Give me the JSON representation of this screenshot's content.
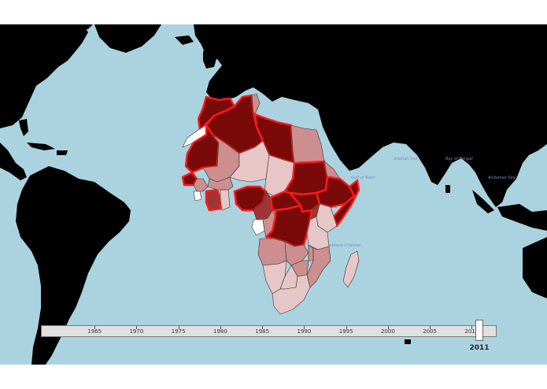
{
  "map": {
    "sea_labels": [
      "Bay of Bengal",
      "Gulf of Aden",
      "Mozambique Channel",
      "Arabian Sea",
      "Andaman Sea"
    ],
    "ocean_color": "#aad3df",
    "land_color": "#000000",
    "highlight_color": "#ff1a1a",
    "shading_scale": [
      "#ffffff",
      "#e6c6c6",
      "#cc8e8e",
      "#9f3535",
      "#7a0a0a"
    ],
    "countries": [
      {
        "name": "Morocco",
        "level": 4
      },
      {
        "name": "Western Sahara",
        "level": 0
      },
      {
        "name": "Algeria",
        "level": 4
      },
      {
        "name": "Tunisia",
        "level": 2
      },
      {
        "name": "Libya",
        "level": 4
      },
      {
        "name": "Egypt",
        "level": 2
      },
      {
        "name": "Mauritania",
        "level": 4
      },
      {
        "name": "Mali",
        "level": 2
      },
      {
        "name": "Niger",
        "level": 1
      },
      {
        "name": "Chad",
        "level": 1
      },
      {
        "name": "Sudan",
        "level": 4
      },
      {
        "name": "Eritrea",
        "level": 2
      },
      {
        "name": "Ethiopia",
        "level": 4
      },
      {
        "name": "Somalia",
        "level": 4
      },
      {
        "name": "Senegal",
        "level": 4
      },
      {
        "name": "Guinea",
        "level": 2
      },
      {
        "name": "Sierra Leone",
        "level": 0
      },
      {
        "name": "Cote d'Ivoire",
        "level": 3
      },
      {
        "name": "Ghana",
        "level": 1
      },
      {
        "name": "Burkina Faso",
        "level": 2
      },
      {
        "name": "Nigeria",
        "level": 4
      },
      {
        "name": "Cameroon",
        "level": 3
      },
      {
        "name": "Central African Republic",
        "level": 4
      },
      {
        "name": "South Sudan",
        "level": 4
      },
      {
        "name": "Kenya",
        "level": 1
      },
      {
        "name": "Uganda",
        "level": 3
      },
      {
        "name": "Gabon",
        "level": 0
      },
      {
        "name": "Congo",
        "level": 2
      },
      {
        "name": "DR Congo",
        "level": 4
      },
      {
        "name": "Tanzania",
        "level": 1
      },
      {
        "name": "Angola",
        "level": 2
      },
      {
        "name": "Zambia",
        "level": 2
      },
      {
        "name": "Malawi",
        "level": 2
      },
      {
        "name": "Mozambique",
        "level": 2
      },
      {
        "name": "Zimbabwe",
        "level": 2
      },
      {
        "name": "Namibia",
        "level": 1
      },
      {
        "name": "Botswana",
        "level": 1
      },
      {
        "name": "South Africa",
        "level": 1
      },
      {
        "name": "Madagascar",
        "level": 1
      }
    ]
  },
  "timeline": {
    "min_year": 1960,
    "max_year": 2011,
    "ticks": [
      "1965",
      "1970",
      "1975",
      "1980",
      "1985",
      "1990",
      "1995",
      "2000",
      "2005",
      "2010"
    ],
    "selected_year": "2011"
  }
}
